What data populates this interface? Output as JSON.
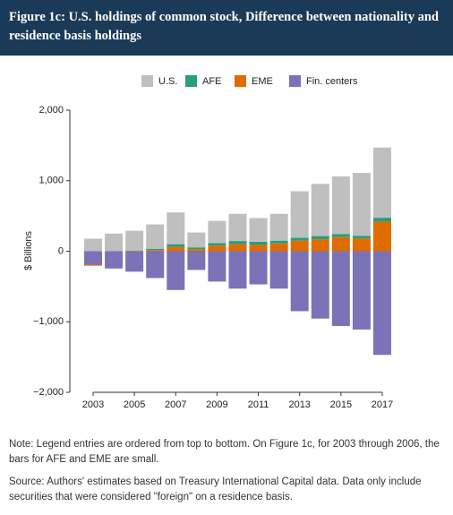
{
  "chart_data": {
    "type": "bar",
    "stacked": true,
    "title": "Figure 1c: U.S. holdings of common stock, Difference between nationality and residence basis holdings",
    "y_label": "$ Billions",
    "note": "Note: Legend entries are ordered from top to bottom. On Figure 1c, for 2003 through 2006, the bars for AFE and EME are small.",
    "source": "Source: Authors' estimates based on Treasury International Capital data. Data only include securities that were considered \"foreign\" on a residence basis.",
    "categories": [
      "2003",
      null,
      "2005",
      null,
      "2007",
      null,
      "2009",
      null,
      "2011",
      null,
      "2013",
      null,
      "2015",
      null,
      "2017"
    ],
    "series": [
      {
        "name": "U.S.",
        "color": "#bfbfbf",
        "values": [
          178,
          246,
          280,
          345,
          450,
          210,
          315,
          385,
          335,
          380,
          660,
          740,
          815,
          890,
          995
        ]
      },
      {
        "name": "AFE",
        "color": "#2a9d7a",
        "values": [
          0,
          2,
          5,
          20,
          40,
          25,
          35,
          45,
          45,
          40,
          40,
          45,
          45,
          40,
          55
        ]
      },
      {
        "name": "EME",
        "color": "#e06c00",
        "values": [
          -15,
          2,
          5,
          15,
          60,
          30,
          80,
          100,
          90,
          110,
          150,
          170,
          200,
          180,
          420
        ]
      },
      {
        "name": "Fin. centers",
        "color": "#7b72b8",
        "values": [
          -190,
          -245,
          -290,
          -380,
          -550,
          -265,
          -430,
          -530,
          -470,
          -530,
          -850,
          -955,
          -1060,
          -1110,
          -1470
        ]
      }
    ],
    "ylim": [
      -2000,
      2000
    ],
    "yticks": [
      {
        "value": -2000,
        "label": "−2,000"
      },
      {
        "value": -1000,
        "label": "−1,000"
      },
      0,
      {
        "value": 1000,
        "label": "1,000"
      },
      {
        "value": 2000,
        "label": "2,000"
      }
    ],
    "legend": "top"
  }
}
